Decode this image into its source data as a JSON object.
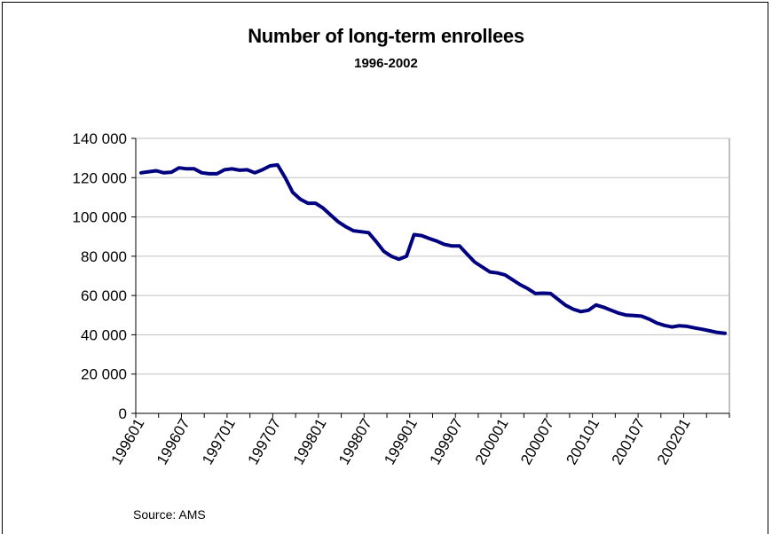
{
  "chart_data": {
    "type": "line",
    "title": "Number of long-term enrollees",
    "subtitle": "1996-2002",
    "source": "Source: AMS",
    "xlabel": "",
    "ylabel": "",
    "ylim": [
      0,
      140000
    ],
    "yticks": [
      0,
      20000,
      40000,
      60000,
      80000,
      100000,
      120000,
      140000
    ],
    "ytick_labels": [
      "0",
      "20 000",
      "40 000",
      "60 000",
      "80 000",
      "100 000",
      "120 000",
      "140 000"
    ],
    "xtick_labels": [
      "199601",
      "199607",
      "199701",
      "199707",
      "199801",
      "199807",
      "199901",
      "199907",
      "200001",
      "200007",
      "200101",
      "200107",
      "200201"
    ],
    "grid": true,
    "line_color": "#000080",
    "series": [
      {
        "x": [
          "199601",
          "199602",
          "199603",
          "199604",
          "199605",
          "199606",
          "199607",
          "199608",
          "199609",
          "199610",
          "199611",
          "199612",
          "199701",
          "199702",
          "199703",
          "199704",
          "199705",
          "199706",
          "199707",
          "199708",
          "199709",
          "199710",
          "199711",
          "199712",
          "199801",
          "199802",
          "199803",
          "199804",
          "199805",
          "199806",
          "199807",
          "199808",
          "199809",
          "199810",
          "199811",
          "199812",
          "199901",
          "199902",
          "199903",
          "199904",
          "199905",
          "199906",
          "199907",
          "199908",
          "199909",
          "199910",
          "199911",
          "199912",
          "200001",
          "200002",
          "200003",
          "200004",
          "200005",
          "200006",
          "200007",
          "200008",
          "200009",
          "200010",
          "200011",
          "200012",
          "200101",
          "200102",
          "200103",
          "200104",
          "200105",
          "200106",
          "200107",
          "200108",
          "200109",
          "200110",
          "200111",
          "200112",
          "200201",
          "200202",
          "200203",
          "200204",
          "200205",
          "200206"
        ],
        "values": [
          122500,
          123000,
          123500,
          122500,
          122800,
          125000,
          124500,
          124500,
          122500,
          122000,
          122000,
          124000,
          124500,
          123800,
          124000,
          122500,
          124000,
          126000,
          126500,
          120000,
          112500,
          109000,
          107000,
          107000,
          104500,
          101000,
          97500,
          95000,
          93000,
          92500,
          92000,
          87500,
          82500,
          80000,
          78500,
          80000,
          91000,
          90500,
          89000,
          87700,
          86000,
          85200,
          85200,
          81000,
          77000,
          74500,
          72000,
          71500,
          70500,
          68000,
          65500,
          63500,
          61000,
          61200,
          61000,
          58000,
          55000,
          53000,
          51800,
          52500,
          55200,
          54000,
          52500,
          51000,
          50000,
          49800,
          49500,
          48000,
          46000,
          44800,
          44000,
          44600,
          44300,
          43500,
          42800,
          42000,
          41200,
          40800
        ]
      }
    ]
  }
}
